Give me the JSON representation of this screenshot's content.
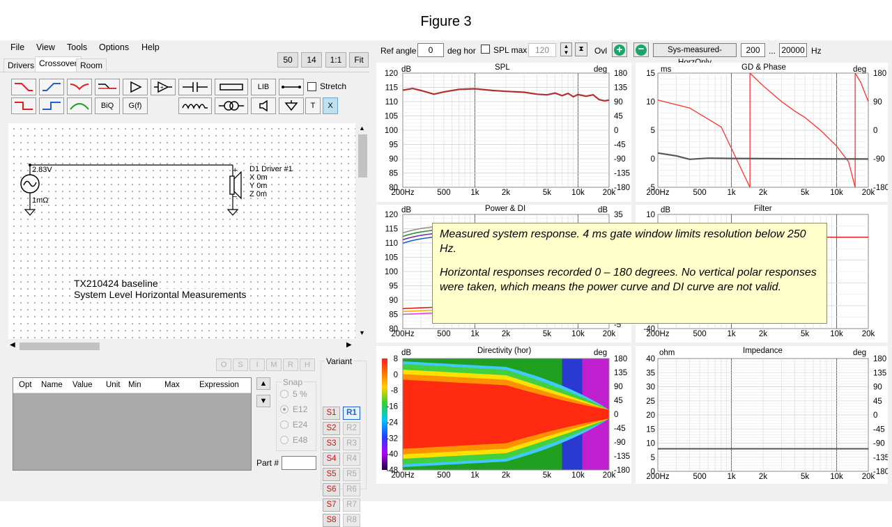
{
  "figure_title": "Figure 3",
  "menu": [
    "File",
    "View",
    "Tools",
    "Options",
    "Help"
  ],
  "zoom_buttons": [
    "50",
    "14",
    "1:1",
    "Fit"
  ],
  "tabs": [
    "Drivers",
    "Crossover",
    "Room"
  ],
  "toolbar": {
    "lib": "LIB",
    "stretch": "Stretch",
    "biq": "BiQ",
    "gf": "G(f)",
    "t": "T",
    "x": "X"
  },
  "schematic": {
    "source_voltage": "2.83V",
    "source_resistance": "1mΩ",
    "driver_name": "D1 Driver #1",
    "driver_x": "X 0m",
    "driver_y": "Y 0m",
    "driver_z": "Z 0m",
    "plus": "+",
    "minus": "−",
    "note_line1": "TX210424 baseline",
    "note_line2": "System Level Horizontal Measurements"
  },
  "osmrh": [
    "O",
    "S",
    "I",
    "M",
    "R",
    "H"
  ],
  "param_table": {
    "columns": [
      "Opt",
      "Name",
      "Value",
      "Unit",
      "Min",
      "Max",
      "Expression"
    ]
  },
  "snap": {
    "label": "Snap",
    "options": [
      "5 %",
      "E12",
      "E24",
      "E48"
    ],
    "selected": "E12"
  },
  "variant": {
    "label": "Variant",
    "s": [
      "S1",
      "S2",
      "S3",
      "S4",
      "S5",
      "S6",
      "S7",
      "S8"
    ],
    "r": [
      "R1",
      "R2",
      "R3",
      "R4",
      "R5",
      "R6",
      "R7",
      "R8"
    ],
    "active_r": "R1"
  },
  "part_label": "Part #",
  "topbar": {
    "ref_angle_label": "Ref angle",
    "ref_angle_value": "0",
    "deg_hor": "deg hor",
    "spl_max_label": "SPL max",
    "spl_max_value": "120",
    "ovl": "Ovl",
    "dataset": "Sys-measured-HorzOnly",
    "f_low": "200",
    "dots": "...",
    "f_high": "20000",
    "hz": "Hz"
  },
  "x_ticks": [
    "200Hz",
    "500",
    "1k",
    "2k",
    "5k",
    "10k",
    "20k"
  ],
  "graphs": {
    "spl": {
      "title": "SPL",
      "unit_left": "dB",
      "unit_right": "deg",
      "left": [
        "120",
        "115",
        "110",
        "105",
        "100",
        "95",
        "90",
        "85",
        "80"
      ],
      "right": [
        "180",
        "135",
        "90",
        "45",
        "0",
        "-45",
        "-90",
        "-135",
        "-180"
      ]
    },
    "gd": {
      "title": "GD & Phase",
      "unit_left": "ms",
      "unit_right": "deg",
      "left": [
        "15",
        "10",
        "5",
        "0",
        "-5"
      ],
      "right": [
        "180",
        "90",
        "0",
        "-90",
        "-180"
      ]
    },
    "power": {
      "title": "Power & DI",
      "unit_left": "dB",
      "unit_right": "dB",
      "left": [
        "120",
        "115",
        "110",
        "105",
        "100",
        "95",
        "90",
        "85",
        "80"
      ],
      "right": [
        "35",
        "-5"
      ]
    },
    "filter": {
      "title": "Filter",
      "unit_left": "dB",
      "left": [
        "10",
        "-40"
      ]
    },
    "directivity": {
      "title": "Directivity (hor)",
      "unit_left": "dB",
      "unit_right": "deg",
      "scale": [
        "8",
        "0",
        "-8",
        "-16",
        "-24",
        "-32",
        "-40",
        "-48"
      ],
      "right": [
        "180",
        "135",
        "90",
        "45",
        "0",
        "-45",
        "-90",
        "-135",
        "-180"
      ]
    },
    "impedance": {
      "title": "Impedance",
      "unit_left": "ohm",
      "unit_right": "deg",
      "left": [
        "40",
        "35",
        "30",
        "25",
        "20",
        "15",
        "10",
        "5",
        "0"
      ],
      "right": [
        "180",
        "135",
        "90",
        "45",
        "0",
        "-45",
        "-90",
        "-135",
        "-180"
      ]
    }
  },
  "annotation": {
    "p1": "Measured system response.  4 ms gate window limits resolution below 250 Hz.",
    "p2": "Horizontal responses recorded 0 – 180 degrees.  No vertical polar responses were taken, which means the power curve and DI curve are not valid."
  },
  "colors": {
    "spl_curve": "#b03030",
    "phase": "#ff3030",
    "gd": "#555555",
    "accent_blue": "#1f5fd0"
  }
}
